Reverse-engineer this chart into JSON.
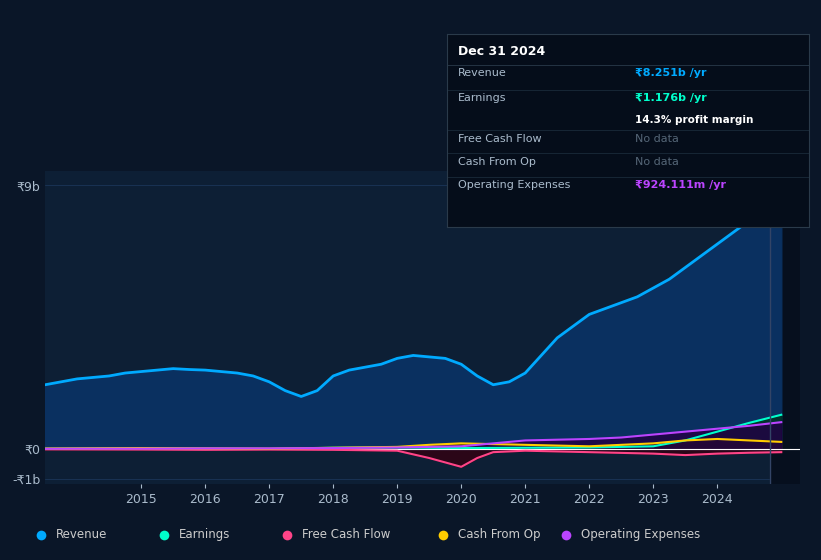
{
  "bg_color": "#0a1628",
  "plot_bg_color": "#0d1f35",
  "grid_color": "#1e3a5f",
  "zero_line_color": "#ffffff",
  "y9b_label": "₹9b",
  "y0_label": "₹0",
  "ym1b_label": "-₹1b",
  "ylim": [
    -1200000000.0,
    9500000000.0
  ],
  "xlabel_years": [
    2015,
    2016,
    2017,
    2018,
    2019,
    2020,
    2021,
    2022,
    2023,
    2024
  ],
  "series": {
    "Revenue": {
      "color": "#00aaff",
      "fill_color": "#0a3060",
      "linewidth": 2.0
    },
    "Earnings": {
      "color": "#00ffcc",
      "fill_color": "#003322",
      "linewidth": 1.5
    },
    "Free Cash Flow": {
      "color": "#ff4488",
      "fill_color": "#330011",
      "linewidth": 1.5
    },
    "Cash From Op": {
      "color": "#ffcc00",
      "fill_color": "#332200",
      "linewidth": 1.5
    },
    "Operating Expenses": {
      "color": "#bb44ff",
      "fill_color": "#220044",
      "linewidth": 1.5
    }
  },
  "tooltip": {
    "date": "Dec 31 2024",
    "Revenue": "₹8.251b /yr",
    "Revenue_color": "#00aaff",
    "Earnings": "₹1.176b /yr",
    "Earnings_color": "#00ffcc",
    "profit_margin": "14.3% profit margin",
    "Free Cash Flow": "No data",
    "Cash From Op": "No data",
    "Operating Expenses": "₹924.111m /yr",
    "Operating_Expenses_color": "#bb44ff"
  },
  "revenue_x": [
    2013.0,
    2013.25,
    2013.5,
    2013.75,
    2014.0,
    2014.25,
    2014.5,
    2014.75,
    2015.0,
    2015.25,
    2015.5,
    2015.75,
    2016.0,
    2016.25,
    2016.5,
    2016.75,
    2017.0,
    2017.25,
    2017.5,
    2017.75,
    2018.0,
    2018.25,
    2018.5,
    2018.75,
    2019.0,
    2019.25,
    2019.5,
    2019.75,
    2020.0,
    2020.25,
    2020.5,
    2020.75,
    2021.0,
    2021.25,
    2021.5,
    2021.75,
    2022.0,
    2022.25,
    2022.5,
    2022.75,
    2023.0,
    2023.25,
    2023.5,
    2023.75,
    2024.0,
    2024.25,
    2024.5,
    2024.75,
    2025.0
  ],
  "revenue_y": [
    2100000000.0,
    2150000000.0,
    2200000000.0,
    2300000000.0,
    2400000000.0,
    2450000000.0,
    2500000000.0,
    2600000000.0,
    2650000000.0,
    2700000000.0,
    2750000000.0,
    2720000000.0,
    2700000000.0,
    2650000000.0,
    2600000000.0,
    2500000000.0,
    2300000000.0,
    2000000000.0,
    1800000000.0,
    2000000000.0,
    2500000000.0,
    2700000000.0,
    2800000000.0,
    2900000000.0,
    3100000000.0,
    3200000000.0,
    3150000000.0,
    3100000000.0,
    2900000000.0,
    2500000000.0,
    2200000000.0,
    2300000000.0,
    2600000000.0,
    3200000000.0,
    3800000000.0,
    4200000000.0,
    4600000000.0,
    4800000000.0,
    5000000000.0,
    5200000000.0,
    5500000000.0,
    5800000000.0,
    6200000000.0,
    6600000000.0,
    7000000000.0,
    7400000000.0,
    7800000000.0,
    8100000000.0,
    8251000000.0
  ],
  "earnings_x": [
    2013.0,
    2014.0,
    2015.0,
    2016.0,
    2017.0,
    2018.0,
    2019.0,
    2020.0,
    2021.0,
    2022.0,
    2023.0,
    2023.5,
    2024.0,
    2024.5,
    2025.0
  ],
  "earnings_y": [
    10000000.0,
    20000000.0,
    30000000.0,
    20000000.0,
    10000000.0,
    50000000.0,
    60000000.0,
    40000000.0,
    50000000.0,
    60000000.0,
    100000000.0,
    300000000.0,
    600000000.0,
    900000000.0,
    1176000000.0
  ],
  "fcf_x": [
    2013.0,
    2015.0,
    2016.0,
    2017.0,
    2018.0,
    2019.0,
    2019.5,
    2020.0,
    2020.25,
    2020.5,
    2021.0,
    2022.0,
    2023.0,
    2023.5,
    2024.0,
    2024.5,
    2025.0
  ],
  "fcf_y": [
    0.0,
    -10000000.0,
    -20000000.0,
    -10000000.0,
    -20000000.0,
    -50000000.0,
    -300000000.0,
    -600000000.0,
    -300000000.0,
    -100000000.0,
    -50000000.0,
    -100000000.0,
    -150000000.0,
    -200000000.0,
    -150000000.0,
    -120000000.0,
    -100000000.0
  ],
  "cashop_x": [
    2013.0,
    2014.0,
    2015.0,
    2016.0,
    2017.0,
    2018.0,
    2019.0,
    2019.5,
    2020.0,
    2021.0,
    2022.0,
    2023.0,
    2023.5,
    2024.0,
    2024.5,
    2025.0
  ],
  "cashop_y": [
    20000000.0,
    30000000.0,
    40000000.0,
    30000000.0,
    20000000.0,
    50000000.0,
    80000000.0,
    150000000.0,
    200000000.0,
    150000000.0,
    100000000.0,
    200000000.0,
    300000000.0,
    350000000.0,
    300000000.0,
    250000000.0
  ],
  "opex_x": [
    2013.0,
    2014.0,
    2015.0,
    2016.0,
    2017.0,
    2018.0,
    2019.0,
    2020.0,
    2020.5,
    2021.0,
    2022.0,
    2022.5,
    2023.0,
    2023.5,
    2024.0,
    2024.5,
    2025.0
  ],
  "opex_y": [
    10000000.0,
    20000000.0,
    20000000.0,
    30000000.0,
    30000000.0,
    40000000.0,
    60000000.0,
    100000000.0,
    200000000.0,
    300000000.0,
    350000000.0,
    400000000.0,
    500000000.0,
    600000000.0,
    700000000.0,
    800000000.0,
    924000000.0
  ],
  "legend_items": [
    {
      "label": "Revenue",
      "color": "#00aaff"
    },
    {
      "label": "Earnings",
      "color": "#00ffcc"
    },
    {
      "label": "Free Cash Flow",
      "color": "#ff4488"
    },
    {
      "label": "Cash From Op",
      "color": "#ffcc00"
    },
    {
      "label": "Operating Expenses",
      "color": "#bb44ff"
    }
  ]
}
